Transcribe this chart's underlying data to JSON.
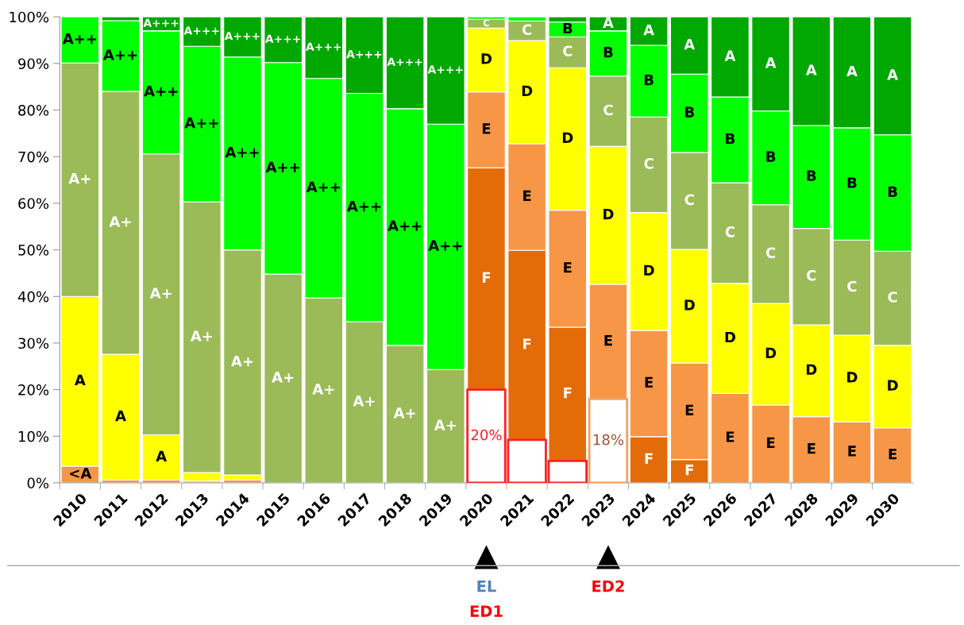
{
  "chart_data": {
    "type": "bar",
    "stacked": true,
    "categories": [
      "2010",
      "2011",
      "2012",
      "2013",
      "2014",
      "2015",
      "2016",
      "2017",
      "2018",
      "2019",
      "2020",
      "2021",
      "2022",
      "2023",
      "2024",
      "2025",
      "2026",
      "2027",
      "2028",
      "2029",
      "2030"
    ],
    "series": [
      {
        "color": "#ffffff",
        "values": [
          null,
          null,
          null,
          null,
          null,
          null,
          null,
          null,
          null,
          null,
          20,
          9.2,
          4.7,
          18,
          null,
          null,
          null,
          null,
          null,
          null,
          null
        ],
        "value_labels": [
          null,
          null,
          null,
          null,
          null,
          null,
          null,
          null,
          null,
          null,
          "20%",
          null,
          null,
          "18%",
          null,
          null,
          null,
          null,
          null,
          null,
          null
        ]
      },
      {
        "name": "F",
        "color": "#e36c09",
        "values": [
          null,
          null,
          null,
          null,
          null,
          null,
          null,
          null,
          null,
          null,
          47.6,
          40.7,
          28.7,
          null,
          9.9,
          5.0,
          null,
          null,
          null,
          null,
          null
        ]
      },
      {
        "name": "E",
        "color": "#f79646",
        "values": [
          null,
          null,
          null,
          null,
          null,
          null,
          null,
          null,
          null,
          null,
          16.3,
          22.9,
          25.1,
          24.6,
          22.8,
          20.7,
          19.2,
          16.7,
          14.2,
          13.1,
          11.8
        ]
      },
      {
        "name": "D",
        "color": "#ffff00",
        "values": [
          null,
          null,
          null,
          null,
          null,
          null,
          null,
          null,
          null,
          null,
          13.7,
          22.1,
          30.6,
          29.6,
          25.3,
          24.4,
          23.6,
          21.8,
          19.7,
          18.6,
          17.7
        ]
      },
      {
        "name": "C",
        "color": "#9bbb59",
        "values": [
          null,
          null,
          null,
          null,
          null,
          null,
          null,
          null,
          null,
          null,
          1.9,
          4.2,
          6.6,
          15.1,
          20.5,
          20.8,
          21.6,
          21.2,
          20.7,
          20.4,
          20.2
        ]
      },
      {
        "name": "B",
        "color": "#00ff00",
        "values": [
          null,
          null,
          null,
          null,
          null,
          null,
          null,
          null,
          null,
          null,
          0.5,
          0.9,
          3.2,
          9.7,
          15.4,
          16.8,
          18.4,
          20.1,
          22.1,
          24.1,
          25.0
        ]
      },
      {
        "name": "A",
        "color": "#00a800",
        "values": [
          null,
          null,
          null,
          null,
          null,
          null,
          null,
          null,
          null,
          null,
          null,
          null,
          1.1,
          3.0,
          6.1,
          12.3,
          17.2,
          20.2,
          23.3,
          23.8,
          25.3
        ]
      },
      {
        "name": "<A",
        "color": "#f79646",
        "values": [
          3.6,
          0.6,
          0.6,
          0.4,
          0.6,
          null,
          null,
          null,
          null,
          null,
          null,
          null,
          null,
          null,
          null,
          null,
          null,
          null,
          null,
          null,
          null
        ]
      },
      {
        "name": "A",
        "color": "#ffff00",
        "values": [
          36.4,
          27.0,
          9.7,
          1.8,
          1.1,
          null,
          null,
          null,
          null,
          null,
          null,
          null,
          null,
          null,
          null,
          null,
          null,
          null,
          null,
          null,
          null
        ]
      },
      {
        "name": "A+",
        "color": "#9bbb59",
        "values": [
          50.1,
          56.4,
          60.3,
          58.1,
          48.3,
          44.8,
          39.7,
          34.6,
          29.5,
          24.3,
          null,
          null,
          null,
          null,
          null,
          null,
          null,
          null,
          null,
          null,
          null
        ]
      },
      {
        "name": "A++",
        "color": "#00ff00",
        "values": [
          9.9,
          15.2,
          26.4,
          33.4,
          41.4,
          45.4,
          47.1,
          49.0,
          50.8,
          52.7,
          null,
          null,
          null,
          null,
          null,
          null,
          null,
          null,
          null,
          null,
          null
        ]
      },
      {
        "name": "A+++",
        "color": "#00a800",
        "values": [
          null,
          0.8,
          3.0,
          6.3,
          8.6,
          9.8,
          13.2,
          16.4,
          19.7,
          23.0,
          null,
          null,
          null,
          null,
          null,
          null,
          null,
          null,
          null,
          null,
          null
        ]
      }
    ],
    "ylim": [
      0,
      100
    ],
    "yticks": [
      {
        "value": 0,
        "label": "0%"
      },
      {
        "value": 10,
        "label": "10%"
      },
      {
        "value": 20,
        "label": "20%"
      },
      {
        "value": 30,
        "label": "30%"
      },
      {
        "value": 40,
        "label": "40%"
      },
      {
        "value": 50,
        "label": "50%"
      },
      {
        "value": 60,
        "label": "60%"
      },
      {
        "value": 70,
        "label": "70%"
      },
      {
        "value": 80,
        "label": "80%"
      },
      {
        "value": 90,
        "label": "90%"
      },
      {
        "value": 100,
        "label": "100%"
      }
    ],
    "annotations": [
      "EL",
      "ED1",
      "ED2"
    ]
  }
}
